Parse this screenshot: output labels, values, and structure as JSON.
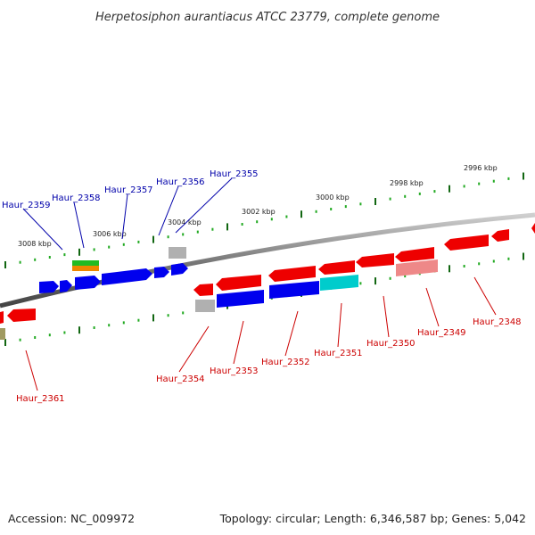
{
  "header": {
    "title": "Herpetosiphon aurantiacus ATCC 23779, complete genome"
  },
  "footer": {
    "accession": "Accession: NC_009972",
    "summary": "Topology: circular; Length: 6,346,587 bp; Genes: 5,042"
  },
  "colors": {
    "backbone": "#888888",
    "forward_label": "#0000aa",
    "reverse_label": "#cc0000",
    "tick_minor": "#22aa22",
    "tick_major": "#116611",
    "blue": "#0000ee",
    "red": "#ee0000",
    "pink": "#ee8888",
    "gray": "#b0b0b0",
    "cyan": "#00cccc",
    "olive": "#a09a60",
    "green": "#22bb22",
    "orange": "#ee8800"
  },
  "scale_labels": [
    "2996 kbp",
    "2998 kbp",
    "3000 kbp",
    "3002 kbp",
    "3004 kbp",
    "3006 kbp",
    "3008 kbp"
  ],
  "forward_gene_labels": [
    "Haur_2359",
    "Haur_2358",
    "Haur_2357",
    "Haur_2356",
    "Haur_2355"
  ],
  "reverse_gene_labels": [
    "Haur_2361",
    "Haur_2354",
    "Haur_2353",
    "Haur_2352",
    "Haur_2351",
    "Haur_2350",
    "Haur_2349",
    "Haur_2348"
  ]
}
